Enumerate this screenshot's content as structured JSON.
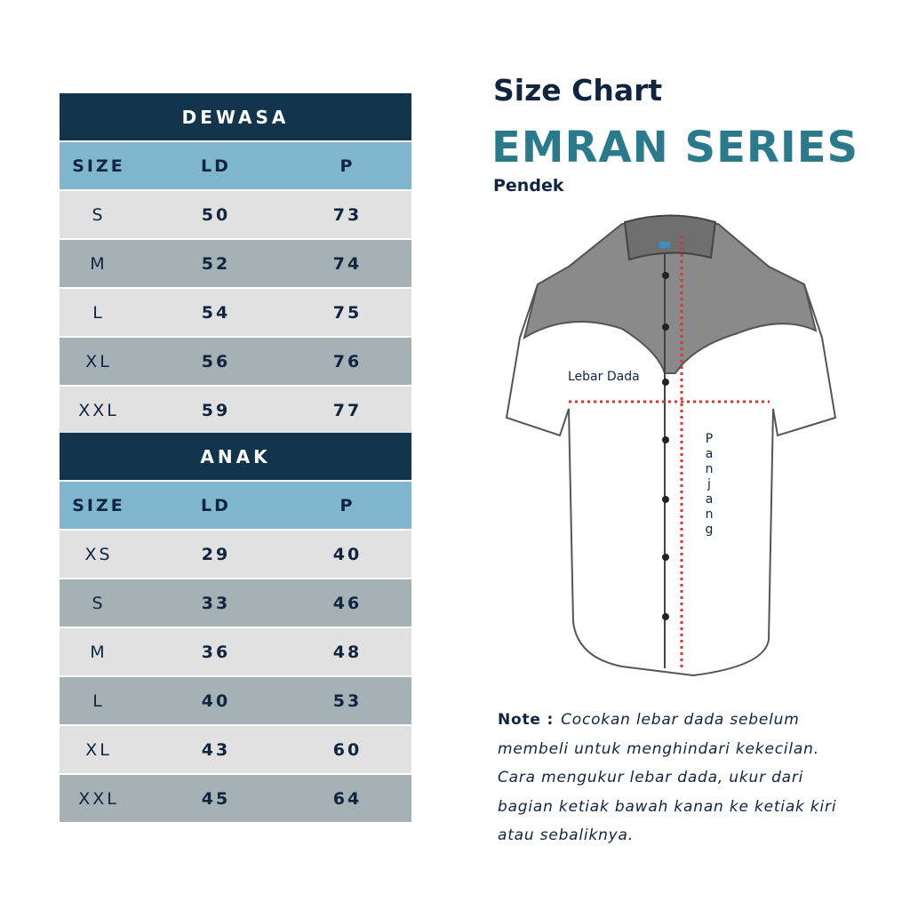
{
  "header": {
    "title": "Size Chart",
    "series": "EMRAN SERIES",
    "variant": "Pendek"
  },
  "tables": [
    {
      "title": "DEWASA",
      "columns": [
        "SIZE",
        "LD",
        "P"
      ],
      "rows": [
        [
          "S",
          50,
          73
        ],
        [
          "M",
          52,
          74
        ],
        [
          "L",
          54,
          75
        ],
        [
          "XL",
          56,
          76
        ],
        [
          "XXL",
          59,
          77
        ]
      ]
    },
    {
      "title": "ANAK",
      "columns": [
        "SIZE",
        "LD",
        "P"
      ],
      "rows": [
        [
          "XS",
          29,
          40
        ],
        [
          "S",
          33,
          46
        ],
        [
          "M",
          36,
          48
        ],
        [
          "L",
          40,
          53
        ],
        [
          "XL",
          43,
          60
        ],
        [
          "XXL",
          45,
          64
        ]
      ]
    }
  ],
  "diagram": {
    "chest_label": "Lebar Dada",
    "length_label": "Panjang"
  },
  "note": {
    "label": "Note :",
    "text": "Cocokan lebar dada sebelum membeli untuk menghindari kekecilan. Cara mengukur lebar dada, ukur dari bagian ketiak bawah kanan ke ketiak kiri atau sebaliknya."
  }
}
